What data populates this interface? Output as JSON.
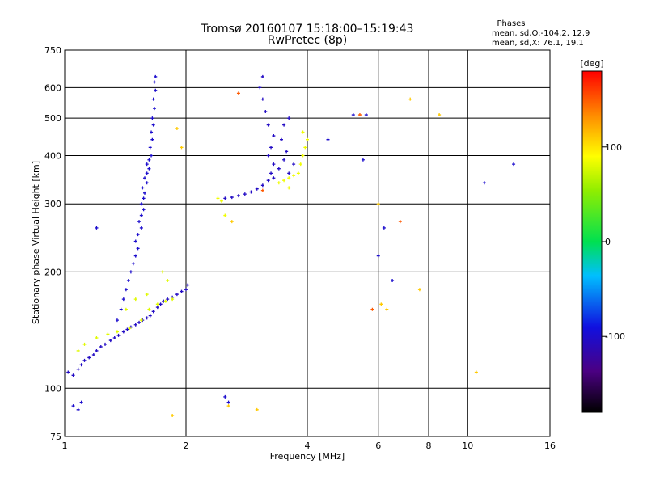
{
  "chart_data": {
    "type": "scatter",
    "title": "Tromsø 20160107 15:18:00–15:19:43",
    "subtitle": "RwPretec (8p)",
    "xlabel": "Frequency [MHz]",
    "ylabel": "Stationary phase Virtual Height [km]",
    "xscale": "log",
    "yscale": "log",
    "xlim": [
      1,
      16
    ],
    "ylim": [
      75,
      750
    ],
    "xticks": [
      1,
      2,
      4,
      6,
      8,
      10,
      16
    ],
    "xtick_labels": [
      "1",
      "2",
      "4",
      "6",
      "8",
      "10",
      "16"
    ],
    "yticks": [
      75,
      100,
      200,
      300,
      400,
      500,
      600,
      750
    ],
    "ytick_labels": [
      "75",
      "100",
      "200",
      "300",
      "400",
      "500",
      "600",
      "750"
    ],
    "grid": true,
    "phases_box": {
      "title": "Phases",
      "line_o": "mean, sd,O:-104.2, 12.9",
      "line_x": "mean, sd,X:  76.1, 19.1"
    },
    "colorbar": {
      "label": "[deg]",
      "range": [
        -180,
        180
      ],
      "ticks": [
        100,
        0,
        -100
      ],
      "tick_labels": [
        "100",
        "0",
        "-100"
      ]
    },
    "clusters": [
      {
        "name": "o-trace-low",
        "phase": -105,
        "points": [
          [
            1.02,
            110
          ],
          [
            1.05,
            108
          ],
          [
            1.08,
            112
          ],
          [
            1.1,
            115
          ],
          [
            1.12,
            118
          ],
          [
            1.15,
            120
          ],
          [
            1.18,
            122
          ],
          [
            1.2,
            125
          ],
          [
            1.23,
            128
          ],
          [
            1.26,
            130
          ],
          [
            1.3,
            133
          ],
          [
            1.33,
            135
          ],
          [
            1.36,
            137
          ],
          [
            1.4,
            140
          ],
          [
            1.43,
            142
          ],
          [
            1.46,
            144
          ],
          [
            1.5,
            146
          ],
          [
            1.53,
            148
          ],
          [
            1.56,
            150
          ],
          [
            1.6,
            152
          ],
          [
            1.63,
            154
          ],
          [
            1.66,
            158
          ],
          [
            1.7,
            162
          ],
          [
            1.73,
            165
          ],
          [
            1.76,
            168
          ],
          [
            1.8,
            170
          ],
          [
            1.85,
            172
          ],
          [
            1.9,
            175
          ],
          [
            1.95,
            178
          ],
          [
            2.0,
            180
          ],
          [
            2.02,
            185
          ]
        ]
      },
      {
        "name": "o-trace-mid",
        "phase": -100,
        "points": [
          [
            1.35,
            150
          ],
          [
            1.38,
            160
          ],
          [
            1.4,
            170
          ],
          [
            1.42,
            180
          ],
          [
            1.44,
            190
          ],
          [
            1.46,
            200
          ],
          [
            1.48,
            210
          ],
          [
            1.5,
            220
          ],
          [
            1.52,
            230
          ],
          [
            1.5,
            240
          ],
          [
            1.52,
            250
          ],
          [
            1.55,
            260
          ],
          [
            1.53,
            270
          ],
          [
            1.55,
            280
          ],
          [
            1.57,
            290
          ],
          [
            1.55,
            300
          ],
          [
            1.57,
            310
          ],
          [
            1.58,
            320
          ],
          [
            1.56,
            330
          ],
          [
            1.6,
            340
          ],
          [
            1.58,
            350
          ],
          [
            1.6,
            360
          ],
          [
            1.62,
            370
          ],
          [
            1.6,
            380
          ],
          [
            1.62,
            390
          ],
          [
            1.64,
            400
          ],
          [
            1.63,
            420
          ],
          [
            1.65,
            440
          ],
          [
            1.64,
            460
          ],
          [
            1.66,
            480
          ],
          [
            1.65,
            500
          ],
          [
            1.67,
            530
          ],
          [
            1.66,
            560
          ],
          [
            1.68,
            590
          ],
          [
            1.67,
            620
          ],
          [
            1.68,
            640
          ]
        ]
      },
      {
        "name": "x-trace-low",
        "phase": 80,
        "points": [
          [
            1.08,
            125
          ],
          [
            1.12,
            130
          ],
          [
            1.2,
            135
          ],
          [
            1.28,
            138
          ],
          [
            1.35,
            140
          ],
          [
            1.45,
            143
          ],
          [
            1.55,
            150
          ],
          [
            1.62,
            160
          ],
          [
            1.7,
            165
          ],
          [
            1.78,
            168
          ],
          [
            1.85,
            170
          ],
          [
            1.6,
            175
          ],
          [
            1.5,
            170
          ],
          [
            1.42,
            160
          ],
          [
            1.75,
            200
          ],
          [
            1.8,
            190
          ]
        ]
      },
      {
        "name": "f-o-trace",
        "phase": -105,
        "points": [
          [
            2.5,
            310
          ],
          [
            2.6,
            312
          ],
          [
            2.7,
            315
          ],
          [
            2.8,
            318
          ],
          [
            2.9,
            322
          ],
          [
            3.0,
            328
          ],
          [
            3.1,
            335
          ],
          [
            3.2,
            345
          ],
          [
            3.25,
            360
          ],
          [
            3.3,
            380
          ],
          [
            3.2,
            400
          ],
          [
            3.25,
            420
          ],
          [
            3.3,
            450
          ],
          [
            3.2,
            480
          ],
          [
            3.15,
            520
          ],
          [
            3.1,
            560
          ],
          [
            3.05,
            600
          ],
          [
            3.1,
            640
          ],
          [
            3.3,
            350
          ],
          [
            3.4,
            370
          ],
          [
            3.5,
            390
          ],
          [
            3.55,
            410
          ],
          [
            3.45,
            440
          ],
          [
            3.5,
            480
          ],
          [
            3.6,
            500
          ],
          [
            3.7,
            380
          ],
          [
            3.6,
            360
          ]
        ]
      },
      {
        "name": "f-x-trace",
        "phase": 85,
        "points": [
          [
            3.4,
            340
          ],
          [
            3.5,
            345
          ],
          [
            3.6,
            350
          ],
          [
            3.7,
            355
          ],
          [
            3.8,
            360
          ],
          [
            3.85,
            380
          ],
          [
            3.9,
            400
          ],
          [
            3.95,
            420
          ],
          [
            4.0,
            440
          ],
          [
            3.9,
            460
          ],
          [
            3.6,
            330
          ],
          [
            2.4,
            310
          ],
          [
            2.45,
            305
          ],
          [
            2.5,
            280
          ]
        ]
      },
      {
        "name": "scattered",
        "phase": -100,
        "points": [
          [
            1.05,
            90
          ],
          [
            1.08,
            88
          ],
          [
            1.1,
            92
          ],
          [
            2.5,
            95
          ],
          [
            2.55,
            92
          ],
          [
            6.0,
            220
          ],
          [
            6.2,
            260
          ],
          [
            6.5,
            190
          ],
          [
            4.5,
            440
          ],
          [
            5.5,
            390
          ],
          [
            11,
            340
          ],
          [
            13,
            380
          ],
          [
            5.2,
            510
          ],
          [
            5.6,
            510
          ],
          [
            1.2,
            260
          ]
        ]
      },
      {
        "name": "scattered-warm",
        "phase": 110,
        "points": [
          [
            1.85,
            85
          ],
          [
            2.55,
            90
          ],
          [
            3.0,
            88
          ],
          [
            6.0,
            300
          ],
          [
            6.1,
            165
          ],
          [
            6.3,
            160
          ],
          [
            7.6,
            180
          ],
          [
            8.5,
            510
          ],
          [
            7.2,
            560
          ],
          [
            10.5,
            110
          ],
          [
            2.6,
            270
          ],
          [
            1.9,
            470
          ],
          [
            1.95,
            420
          ]
        ]
      },
      {
        "name": "scattered-red",
        "phase": 150,
        "points": [
          [
            5.8,
            160
          ],
          [
            6.8,
            270
          ],
          [
            5.4,
            510
          ],
          [
            2.7,
            580
          ],
          [
            3.1,
            325
          ]
        ]
      }
    ]
  }
}
